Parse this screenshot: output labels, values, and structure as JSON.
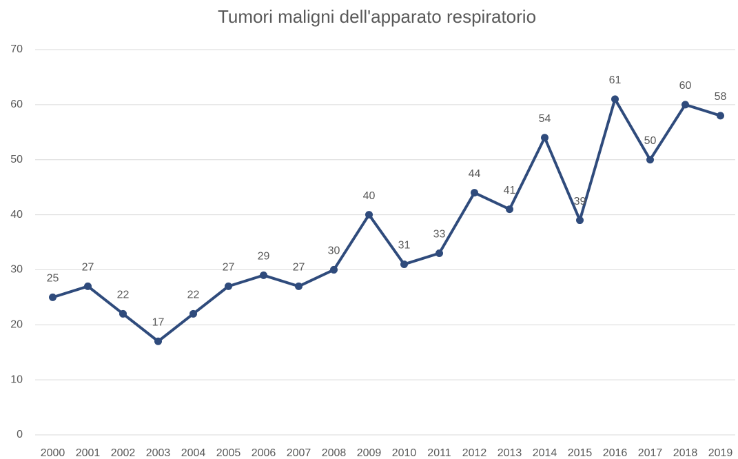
{
  "chart_data": {
    "type": "line",
    "title": "Tumori maligni dell'apparato respiratorio",
    "categories": [
      "2000",
      "2001",
      "2002",
      "2003",
      "2004",
      "2005",
      "2006",
      "2007",
      "2008",
      "2009",
      "2010",
      "2011",
      "2012",
      "2013",
      "2014",
      "2015",
      "2016",
      "2017",
      "2018",
      "2019"
    ],
    "values": [
      25,
      27,
      22,
      17,
      22,
      27,
      29,
      27,
      30,
      40,
      31,
      33,
      44,
      41,
      54,
      39,
      61,
      50,
      60,
      58
    ],
    "color": "#2f4b7c",
    "ylim": [
      0,
      70
    ],
    "yticks": [
      0,
      10,
      20,
      30,
      40,
      50,
      60,
      70
    ],
    "grid": true,
    "data_labels": true
  }
}
